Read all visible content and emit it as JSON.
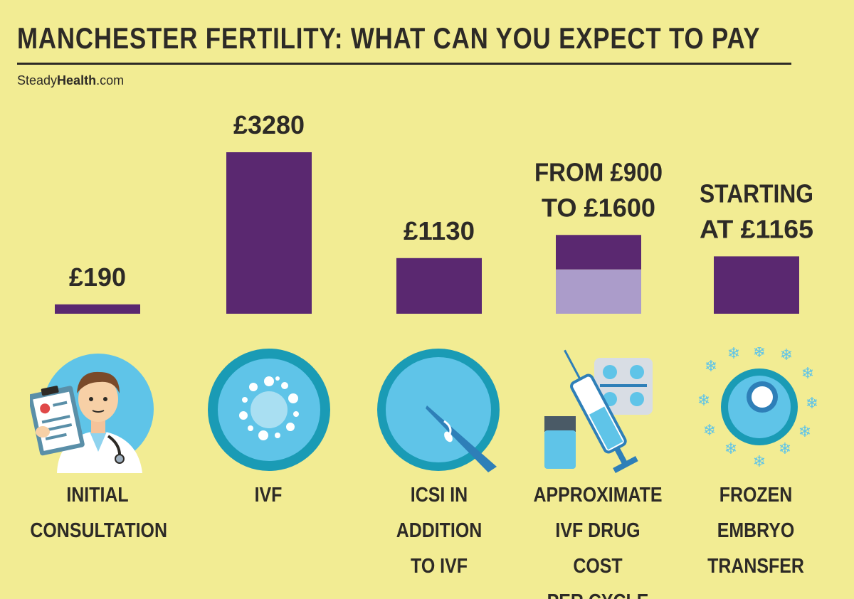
{
  "header": {
    "title": "MANCHESTER FERTILITY: WHAT CAN YOU EXPECT TO PAY",
    "source_prefix": "Steady",
    "source_bold": "Health",
    "source_suffix": ".com"
  },
  "colors": {
    "background": "#f2ec93",
    "bar": "#5a2870",
    "bar_range": "#ab9cca",
    "text": "#2d2a26",
    "icon_circle_light": "#5fc4e8",
    "icon_circle_dark": "#1a9bb5"
  },
  "chart_data": {
    "type": "bar",
    "title": "MANCHESTER FERTILITY: WHAT CAN YOU EXPECT TO PAY",
    "unit": "£",
    "categories": [
      "INITIAL\nCONSULTATION",
      "IVF",
      "ICSI IN\nADDITION\nTO IVF",
      "APPROXIMATE\nIVF DRUG COST\nPER CYCLE",
      "FROZEN\nEMBRYO\nTRANSFER"
    ],
    "values": [
      190,
      3280,
      1130,
      1600,
      1165
    ],
    "range_low": [
      null,
      null,
      null,
      900,
      null
    ],
    "data_labels": [
      [
        "£190"
      ],
      [
        "£3280"
      ],
      [
        "£1130"
      ],
      [
        "FROM £900",
        "TO £1600"
      ],
      [
        "STARTING",
        "AT £1165"
      ]
    ],
    "ylim": [
      0,
      3280
    ],
    "axes_visible": false,
    "grid": false,
    "legend": false
  },
  "icons": [
    "doctor-icon",
    "ivf-cell-icon",
    "icsi-needle-icon",
    "syringe-pills-icon",
    "frozen-embryo-icon"
  ]
}
